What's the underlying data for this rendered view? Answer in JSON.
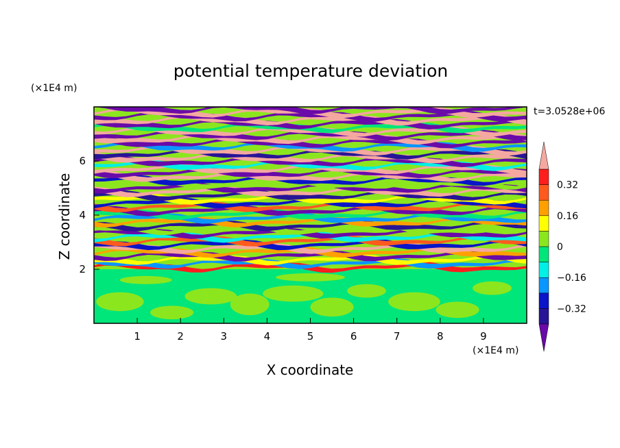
{
  "chart_data": {
    "type": "heatmap",
    "title": "potential temperature deviation",
    "xlabel": "X coordinate",
    "ylabel": "Z coordinate",
    "x_unit": "(×1E4 m)",
    "y_unit": "(×1E4 m)",
    "time_label": "t=3.0528e+06",
    "xlim": [
      0,
      10
    ],
    "ylim": [
      0,
      8
    ],
    "x_ticks": [
      "1",
      "2",
      "3",
      "4",
      "5",
      "6",
      "7",
      "8",
      "9"
    ],
    "y_ticks": [
      "2",
      "4",
      "6"
    ],
    "colorbar": {
      "levels": [
        -0.4,
        -0.32,
        -0.24,
        -0.16,
        -0.08,
        0,
        0.08,
        0.16,
        0.24,
        0.32,
        0.4
      ],
      "tick_labels": [
        "0.32",
        "0.16",
        "0",
        "-0.16",
        "-0.32"
      ],
      "colors": [
        "#6a0aa8",
        "#281496",
        "#0a14c8",
        "#0a96ff",
        "#00f0e6",
        "#00e67a",
        "#8ce61e",
        "#ffff00",
        "#ffa000",
        "#ff5a1e",
        "#ff1e1e",
        "#f5a8a0"
      ]
    },
    "grid": false
  }
}
